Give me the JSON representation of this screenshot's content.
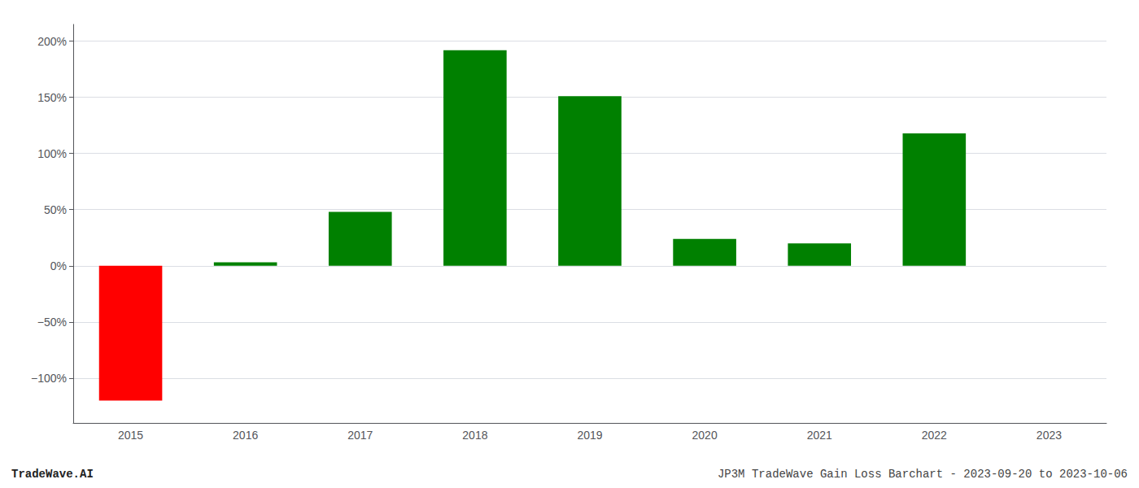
{
  "chart_data": {
    "type": "bar",
    "categories": [
      "2015",
      "2016",
      "2017",
      "2018",
      "2019",
      "2020",
      "2021",
      "2022",
      "2023"
    ],
    "values": [
      -120,
      3,
      48,
      192,
      151,
      24,
      20,
      118,
      null
    ],
    "colors": [
      "#ff0000",
      "#008000",
      "#008000",
      "#008000",
      "#008000",
      "#008000",
      "#008000",
      "#008000",
      null
    ],
    "ylim": [
      -140,
      215
    ],
    "yticks": [
      {
        "value": -100,
        "label": "−100%"
      },
      {
        "value": -50,
        "label": "−50%"
      },
      {
        "value": 0,
        "label": "0%"
      },
      {
        "value": 50,
        "label": "50%"
      },
      {
        "value": 100,
        "label": "100%"
      },
      {
        "value": 150,
        "label": "150%"
      },
      {
        "value": 200,
        "label": "200%"
      }
    ],
    "grid": true,
    "annotations": [
      "TradeWave.AI",
      "JP3M TradeWave Gain Loss Barchart - 2023-09-20 to 2023-10-06"
    ]
  }
}
